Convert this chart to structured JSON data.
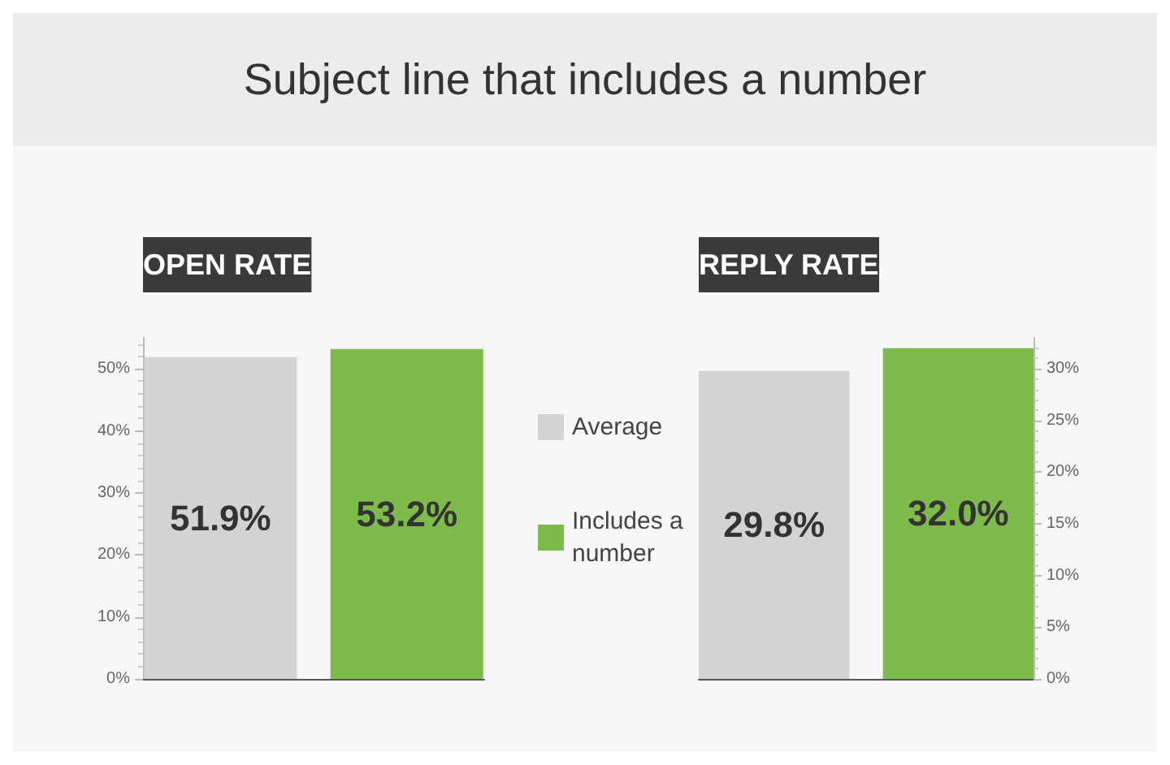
{
  "chart_data": [
    {
      "type": "bar",
      "title": "Subject line that includes a number",
      "subtitle": "OPEN RATE",
      "categories": [
        null
      ],
      "series": [
        {
          "name": "Average",
          "color": "#d3d3d3",
          "values": [
            51.9
          ],
          "value_labels": [
            "51.9%"
          ]
        },
        {
          "name": "Includes a number",
          "color": "#7dbb4b",
          "values": [
            53.2
          ],
          "value_labels": [
            "53.2%"
          ]
        }
      ],
      "ylim": [
        0,
        55
      ],
      "yticks": [
        {
          "value": 0,
          "label": "0%"
        },
        {
          "value": 10,
          "label": "10%"
        },
        {
          "value": 20,
          "label": "20%"
        },
        {
          "value": 30,
          "label": "30%"
        },
        {
          "value": 40,
          "label": "40%"
        },
        {
          "value": 50,
          "label": "50%"
        }
      ],
      "legend": "right",
      "grid": false
    },
    {
      "type": "bar",
      "subtitle": "REPLY RATE",
      "categories": [
        null
      ],
      "series": [
        {
          "color": "#d3d3d3",
          "values": [
            29.8
          ],
          "value_labels": [
            "29.8%"
          ]
        },
        {
          "color": "#7dbb4b",
          "values": [
            32.0
          ],
          "value_labels": [
            "32.0%"
          ]
        }
      ],
      "ylim": [
        0,
        33
      ],
      "yticks": [
        {
          "value": 0,
          "label": "0%"
        },
        {
          "value": 5,
          "label": "5%"
        },
        {
          "value": 10,
          "label": "10%"
        },
        {
          "value": 15,
          "label": "15%"
        },
        {
          "value": 20,
          "label": "20%"
        },
        {
          "value": 25,
          "label": "25%"
        },
        {
          "value": 30,
          "label": "30%"
        }
      ],
      "grid": false
    }
  ]
}
